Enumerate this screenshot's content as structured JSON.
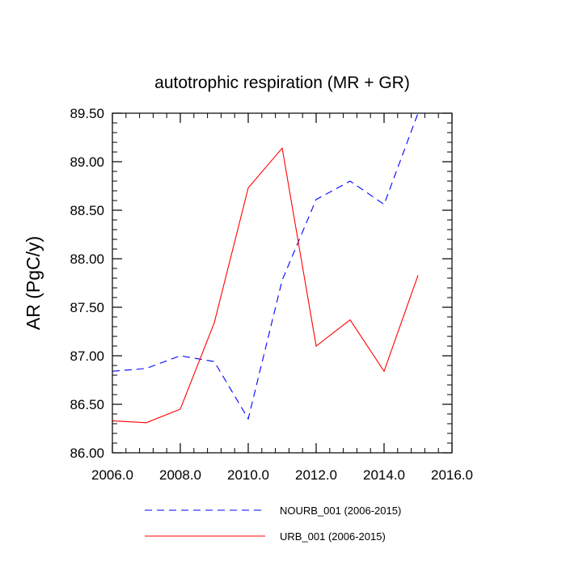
{
  "chart_data": {
    "type": "line",
    "title": "autotrophic respiration (MR + GR)",
    "xlabel": "",
    "ylabel": "AR  (PgC/y)",
    "xlim": [
      2006,
      2016
    ],
    "ylim": [
      86.0,
      89.5
    ],
    "xticks": [
      2006,
      2008,
      2010,
      2012,
      2014,
      2016
    ],
    "xtick_labels": [
      "2006.0",
      "2008.0",
      "2010.0",
      "2012.0",
      "2014.0",
      "2016.0"
    ],
    "yticks": [
      86.0,
      86.5,
      87.0,
      87.5,
      88.0,
      88.5,
      89.0,
      89.5
    ],
    "ytick_labels": [
      "86.00",
      "86.50",
      "87.00",
      "87.50",
      "88.00",
      "88.50",
      "89.00",
      "89.50"
    ],
    "grid": false,
    "legend_position": "bottom",
    "x": [
      2006,
      2007,
      2008,
      2009,
      2010,
      2011,
      2012,
      2013,
      2014,
      2015
    ],
    "series": [
      {
        "name": "NOURB_001 (2006-2015)",
        "color": "#0000ff",
        "style": "dashed",
        "values": [
          86.84,
          86.87,
          87.0,
          86.94,
          86.35,
          87.78,
          88.61,
          88.8,
          88.56,
          89.5
        ]
      },
      {
        "name": "URB_001 (2006-2015)",
        "color": "#ff0000",
        "style": "solid",
        "values": [
          86.33,
          86.31,
          86.45,
          87.34,
          88.73,
          89.14,
          87.1,
          87.37,
          86.84,
          87.83
        ]
      }
    ]
  }
}
